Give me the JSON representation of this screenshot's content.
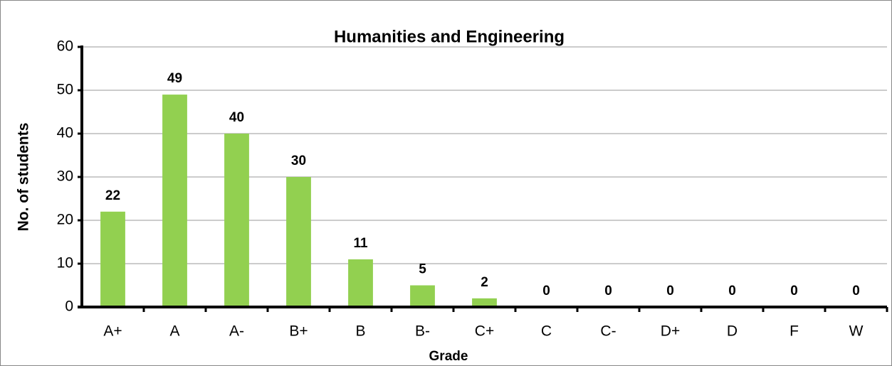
{
  "chart_data": {
    "type": "bar",
    "title": "Humanities and Engineering",
    "x_label": "Grade",
    "y_label": "No. of students",
    "categories": [
      "A+",
      "A",
      "A-",
      "B+",
      "B",
      "B-",
      "C+",
      "C",
      "C-",
      "D+",
      "D",
      "F",
      "W"
    ],
    "values": [
      22,
      49,
      40,
      30,
      11,
      5,
      2,
      0,
      0,
      0,
      0,
      0,
      0
    ],
    "color": "#92d050",
    "ylim": [
      0,
      60
    ],
    "yticks": [
      0,
      10,
      20,
      30,
      40,
      50,
      60
    ],
    "grid": true
  }
}
